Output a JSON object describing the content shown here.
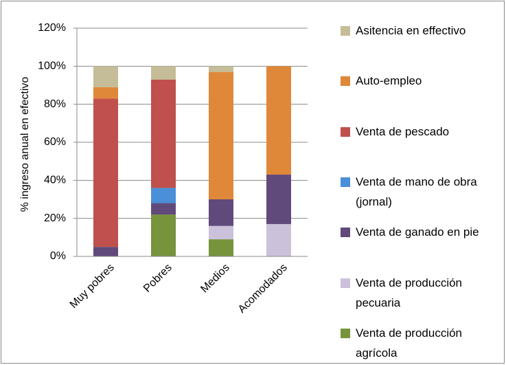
{
  "chart_data": {
    "type": "stacked_bar",
    "y_label": "% ingreso anual en efectivo",
    "categories": [
      "Muy pobres",
      "Pobres",
      "Medios",
      "Acomodados"
    ],
    "series": [
      {
        "name": "Venta de producción agrícola",
        "color": "#77933c",
        "values": [
          0,
          22,
          9,
          0
        ]
      },
      {
        "name": "Venta de producción pecuaria",
        "color": "#ccc1da",
        "values": [
          0,
          0,
          7,
          17
        ]
      },
      {
        "name": "Venta de ganado en pie",
        "color": "#604a7b",
        "values": [
          5,
          6,
          14,
          26
        ]
      },
      {
        "name": "Venta de mano de obra (jornal)",
        "color": "#4a8fd8",
        "values": [
          0,
          8,
          0,
          0
        ]
      },
      {
        "name": "Venta de pescado",
        "color": "#c0504d",
        "values": [
          78,
          57,
          0,
          0
        ]
      },
      {
        "name": "Auto-empleo",
        "color": "#e0883a",
        "values": [
          6,
          0,
          67,
          57
        ]
      },
      {
        "name": "Asitencia en effectivo",
        "color": "#c4bd97",
        "values": [
          11,
          7,
          3,
          0
        ]
      }
    ],
    "ylim": [
      0,
      120
    ],
    "yticks": [
      {
        "value": 0,
        "label": "0%"
      },
      {
        "value": 20,
        "label": "20%"
      },
      {
        "value": 40,
        "label": "40%"
      },
      {
        "value": 60,
        "label": "60%"
      },
      {
        "value": 80,
        "label": "80%"
      },
      {
        "value": 100,
        "label": "100%"
      },
      {
        "value": 120,
        "label": "120%"
      }
    ],
    "grid": true,
    "legend": "right"
  }
}
